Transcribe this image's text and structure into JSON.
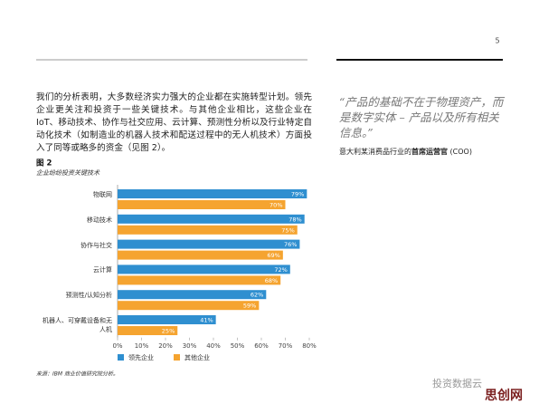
{
  "document": {
    "page_number": "5",
    "paragraph": "我们的分析表明，大多数经济实力强大的企业都在实施转型计划。领先企业更关注和投资于一些关键技术。与其他企业相比，这些企业在 IoT、移动技术、协作与社交应用、云计算、预测性分析以及行业特定自动化技术（如制造业的机器人技术和配送过程中的无人机技术）方面投入了同等或略多的资金（见图 2）。",
    "quote": "“产品的基础不在于物理资产，而是数字实体 – 产品以及所有相关信息。”",
    "attribution": [
      "意大利某消费品行业的",
      "首席运营官",
      " (COO)"
    ],
    "figure_label": "图 2",
    "source": "来源：IBM 商业价值研究院分析。",
    "watermark": [
      "投资数据云",
      "思创网"
    ]
  },
  "chart_data": {
    "type": "bar",
    "orientation": "horizontal",
    "title": "企业纷纷投资关键技术",
    "categories": [
      "物联网",
      "移动技术",
      "协作与社交",
      "云计算",
      "预测性/认知分析",
      "机器人、可穿戴设备和无人机"
    ],
    "series": [
      {
        "name": "领先企业",
        "color": "#2f8fd0",
        "values": [
          79,
          78,
          76,
          72,
          62,
          41
        ],
        "value_labels": [
          "79%",
          "78%",
          "76%",
          "72%",
          "62%",
          "41%"
        ]
      },
      {
        "name": "其他企业",
        "color": "#f5a430",
        "values": [
          70,
          75,
          69,
          68,
          59,
          25
        ],
        "value_labels": [
          "70%",
          "75%",
          "69%",
          "68%",
          "59%",
          "25%"
        ]
      }
    ],
    "xlim": [
      0,
      80
    ],
    "xticks": [
      {
        "value": 0,
        "label": "0%"
      },
      {
        "value": 10,
        "label": "10%"
      },
      {
        "value": 20,
        "label": "20%"
      },
      {
        "value": 30,
        "label": "30%"
      },
      {
        "value": 40,
        "label": "40%"
      },
      {
        "value": 50,
        "label": "50%"
      },
      {
        "value": 60,
        "label": "60%"
      },
      {
        "value": 70,
        "label": "70%"
      },
      {
        "value": 80,
        "label": "80%"
      }
    ],
    "legend": "bottom"
  }
}
